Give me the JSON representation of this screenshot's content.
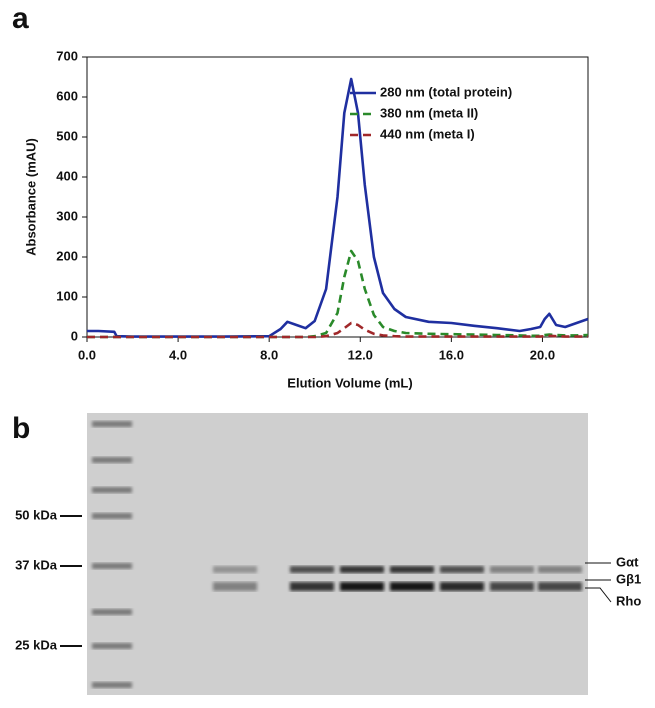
{
  "panel_a": {
    "label": "a"
  },
  "chart_data": {
    "type": "line",
    "x_label": "Elution Volume (mL)",
    "y_label": "Absorbance (mAU)",
    "x": [
      0,
      0.5,
      1.2,
      1.3,
      2,
      4,
      6,
      8,
      8.5,
      8.8,
      9.2,
      9.6,
      10,
      10.5,
      11,
      11.3,
      11.6,
      11.9,
      12.2,
      12.6,
      13,
      13.5,
      14,
      15,
      16,
      17,
      18,
      19,
      19.5,
      19.9,
      20.1,
      20.3,
      20.6,
      21,
      21.5,
      22
    ],
    "series": [
      {
        "name": "280 nm (total protein)",
        "color": "#1f2fa0",
        "dash": false,
        "values": [
          15,
          15,
          13,
          2,
          1,
          1,
          1,
          2,
          20,
          38,
          30,
          22,
          40,
          120,
          350,
          560,
          645,
          560,
          380,
          200,
          110,
          70,
          50,
          38,
          35,
          28,
          22,
          15,
          20,
          25,
          45,
          58,
          30,
          25,
          35,
          45
        ]
      },
      {
        "name": "380 nm (meta II)",
        "color": "#2a8a2a",
        "dash": true,
        "values": [
          0,
          0,
          0,
          0,
          0,
          0,
          0,
          0,
          0,
          0,
          0,
          0,
          2,
          10,
          60,
          150,
          215,
          190,
          120,
          55,
          25,
          15,
          10,
          8,
          7,
          6,
          5,
          4,
          3,
          3,
          5,
          6,
          5,
          4,
          4,
          5
        ]
      },
      {
        "name": "440 nm (meta I)",
        "color": "#a0282a",
        "dash": true,
        "values": [
          0,
          0,
          0,
          0,
          0,
          0,
          0,
          0,
          0,
          0,
          0,
          0,
          0,
          2,
          10,
          22,
          35,
          30,
          18,
          8,
          4,
          2,
          1,
          1,
          1,
          1,
          1,
          1,
          1,
          1,
          2,
          3,
          2,
          1,
          1,
          1
        ]
      }
    ],
    "xlim": [
      0,
      22
    ],
    "xticks": [
      {
        "value": 0,
        "label": "0.0"
      },
      {
        "value": 4,
        "label": "4.0"
      },
      {
        "value": 8,
        "label": "8.0"
      },
      {
        "value": 12,
        "label": "12.0"
      },
      {
        "value": 16,
        "label": "16.0"
      },
      {
        "value": 20,
        "label": "20.0"
      }
    ],
    "ylim": [
      0,
      700
    ],
    "yticks": [
      0,
      100,
      200,
      300,
      400,
      500,
      600,
      700
    ],
    "legend": "upper right",
    "grid": false
  },
  "panel_b": {
    "label": "b",
    "markers": [
      "50 kDa",
      "37 kDa",
      "25 kDa"
    ],
    "bands": [
      "Gαt",
      "Gβ1",
      "Rho"
    ]
  }
}
